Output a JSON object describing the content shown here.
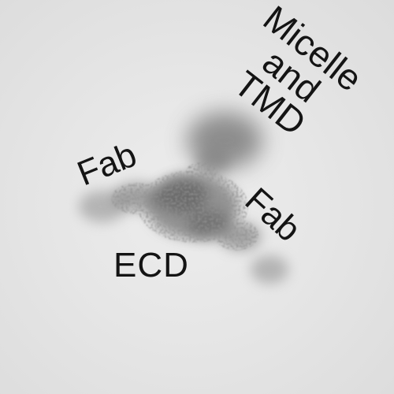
{
  "image": {
    "labels": {
      "micelle_tmd": "Micelle\nand\nTMD",
      "fab_left": "Fab",
      "fab_right": "Fab",
      "ecd": "ECD"
    },
    "colors": {
      "background": "#e4e4e4",
      "density": "#5a5a5a",
      "text": "#141414"
    }
  }
}
